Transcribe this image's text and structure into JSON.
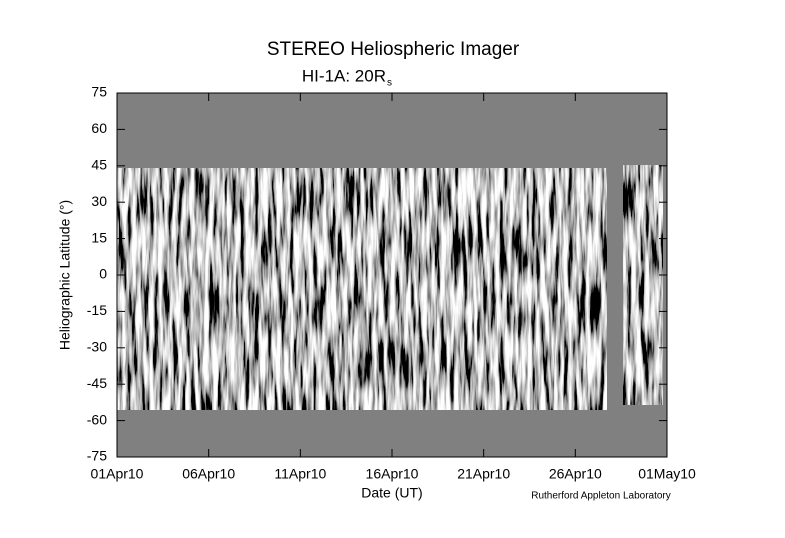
{
  "chart_data": {
    "type": "image",
    "title": "STEREO Heliospheric Imager",
    "subtitle": "HI-1A: 20R",
    "subtitle_subscript": "s",
    "xlabel": "Date (UT)",
    "ylabel": "Heliographic Latitude (°)",
    "annotation": "Rutherford Appleton Laboratory",
    "xlim": [
      "2010-04-01",
      "2010-05-01"
    ],
    "xticks": [
      {
        "value": "2010-04-01",
        "label": "01Apr10"
      },
      {
        "value": "2010-04-06",
        "label": "06Apr10"
      },
      {
        "value": "2010-04-11",
        "label": "11Apr10"
      },
      {
        "value": "2010-04-16",
        "label": "16Apr10"
      },
      {
        "value": "2010-04-21",
        "label": "21Apr10"
      },
      {
        "value": "2010-04-26",
        "label": "26Apr10"
      },
      {
        "value": "2010-05-01",
        "label": "01May10"
      }
    ],
    "ylim": [
      -75,
      75
    ],
    "yticks": [
      -75,
      -60,
      -45,
      -30,
      -15,
      0,
      15,
      30,
      45,
      60,
      75
    ]
  }
}
